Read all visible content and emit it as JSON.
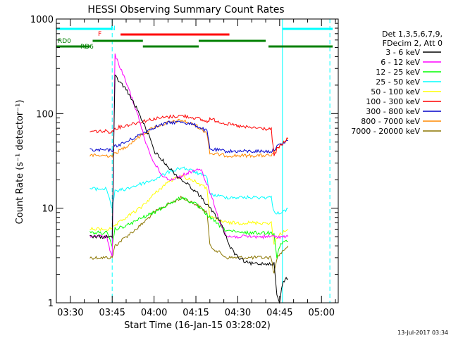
{
  "chart_data": {
    "type": "line",
    "title": "HESSI Observing Summary Count Rates",
    "xlabel": "Start Time (16-Jan-15 03:28:02)",
    "ylabel": "Count Rate (s⁻¹ detector⁻¹)",
    "y_scale": "log",
    "ylim": [
      1,
      1000
    ],
    "xlim": [
      "03:25",
      "05:06"
    ],
    "x_ticks": [
      "03:30",
      "03:45",
      "04:00",
      "04:15",
      "04:30",
      "04:45",
      "05:00"
    ],
    "y_ticks": [
      1,
      10,
      100,
      1000
    ],
    "legend_header": [
      "Det 1,3,5,6,7,9,",
      "FDecim 2, Att 0"
    ],
    "legend_position": "right",
    "series": [
      {
        "name": "3 - 6 keV",
        "color": "#000000",
        "x": [
          "03:37",
          "03:43",
          "03:45",
          "03:46",
          "03:50",
          "03:54",
          "03:58",
          "04:00",
          "04:04",
          "04:08",
          "04:12",
          "04:16",
          "04:20",
          "04:24",
          "04:27",
          "04:30",
          "04:34",
          "04:38",
          "04:41",
          "04:43",
          "04:44",
          "04:45",
          "04:46",
          "04:47",
          "04:48"
        ],
        "y": [
          5,
          5,
          5,
          250,
          180,
          110,
          60,
          40,
          30,
          22,
          18,
          14,
          10,
          7,
          4,
          3,
          2.6,
          2.6,
          2.6,
          2.6,
          1.2,
          1,
          1.6,
          1.8,
          1.8
        ]
      },
      {
        "name": "6 - 12 keV",
        "color": "#ff00ff",
        "x": [
          "03:37",
          "03:43",
          "03:45",
          "03:46",
          "03:48",
          "03:51",
          "03:54",
          "03:57",
          "04:00",
          "04:03",
          "04:06",
          "04:10",
          "04:14",
          "04:17",
          "04:20",
          "04:23",
          "04:26",
          "04:30",
          "04:34",
          "04:38",
          "04:41",
          "04:43",
          "04:44",
          "04:48"
        ],
        "y": [
          5,
          5,
          3,
          420,
          300,
          180,
          100,
          50,
          30,
          22,
          20,
          22,
          25,
          25,
          15,
          8,
          5,
          5,
          5,
          5,
          5,
          5,
          5,
          5
        ]
      },
      {
        "name": "12 - 25 keV",
        "color": "#00ff00",
        "x": [
          "03:37",
          "03:43",
          "03:45",
          "03:46",
          "03:50",
          "03:56",
          "04:00",
          "04:05",
          "04:10",
          "04:15",
          "04:20",
          "04:25",
          "04:30",
          "04:36",
          "04:42",
          "04:43",
          "04:44",
          "04:45",
          "04:47",
          "04:48"
        ],
        "y": [
          5.5,
          5.5,
          4,
          6,
          6.5,
          8,
          9,
          11,
          13,
          11,
          8,
          6,
          5.5,
          5.5,
          5.5,
          5.5,
          3,
          4,
          4.5,
          4.5
        ]
      },
      {
        "name": "25 - 50 keV",
        "color": "#00ffff",
        "x": [
          "03:37",
          "03:43",
          "03:45",
          "03:46",
          "03:50",
          "03:55",
          "04:00",
          "04:05",
          "04:10",
          "04:15",
          "04:19",
          "04:20",
          "04:26",
          "04:32",
          "04:38",
          "04:42",
          "04:43",
          "04:44",
          "04:46",
          "04:48"
        ],
        "y": [
          16,
          16,
          10,
          15,
          16,
          18,
          20,
          24,
          27,
          24,
          21,
          14,
          13,
          13,
          13,
          13,
          9,
          9,
          9,
          10
        ]
      },
      {
        "name": "50 - 100 keV",
        "color": "#ffff00",
        "x": [
          "03:37",
          "03:43",
          "03:45",
          "03:46",
          "03:50",
          "03:55",
          "04:00",
          "04:05",
          "04:10",
          "04:15",
          "04:19",
          "04:20",
          "04:26",
          "04:32",
          "04:38",
          "04:42",
          "04:43",
          "04:44",
          "04:46",
          "04:48"
        ],
        "y": [
          6,
          6,
          6,
          6.5,
          8,
          10,
          14,
          19,
          22,
          19,
          16,
          8,
          7,
          7,
          7,
          7,
          4,
          5,
          5.5,
          6
        ]
      },
      {
        "name": "100 - 300 keV",
        "color": "#ff0000",
        "x": [
          "03:37",
          "03:43",
          "03:45",
          "03:46",
          "03:50",
          "03:55",
          "04:00",
          "04:05",
          "04:10",
          "04:15",
          "04:19",
          "04:20",
          "04:26",
          "04:32",
          "04:38",
          "04:42",
          "04:43",
          "04:44",
          "04:46",
          "04:48"
        ],
        "y": [
          65,
          65,
          64,
          70,
          75,
          82,
          88,
          92,
          95,
          90,
          82,
          88,
          78,
          72,
          70,
          68,
          35,
          42,
          48,
          55
        ]
      },
      {
        "name": "300 - 800 keV",
        "color": "#0000cc",
        "x": [
          "03:37",
          "03:43",
          "03:45",
          "03:46",
          "03:50",
          "03:55",
          "04:00",
          "04:05",
          "04:10",
          "04:15",
          "04:19",
          "04:20",
          "04:26",
          "04:32",
          "04:38",
          "04:42",
          "04:43",
          "04:44",
          "04:46",
          "04:48"
        ],
        "y": [
          41,
          41,
          41,
          45,
          50,
          60,
          72,
          80,
          82,
          75,
          65,
          42,
          40,
          40,
          40,
          40,
          42,
          45,
          48,
          52
        ]
      },
      {
        "name": "800 - 7000 keV",
        "color": "#ff8800",
        "x": [
          "03:37",
          "03:43",
          "03:45",
          "03:46",
          "03:50",
          "03:55",
          "04:00",
          "04:05",
          "04:10",
          "04:15",
          "04:19",
          "04:20",
          "04:26",
          "04:32",
          "04:38",
          "04:42",
          "04:43",
          "04:44",
          "04:46",
          "04:48"
        ],
        "y": [
          36,
          36,
          36,
          38,
          45,
          58,
          72,
          80,
          85,
          75,
          62,
          38,
          36,
          36,
          36,
          36,
          38,
          42,
          48,
          55
        ]
      },
      {
        "name": "7000 - 20000 keV",
        "color": "#8b7500",
        "x": [
          "03:37",
          "03:43",
          "03:45",
          "03:46",
          "03:50",
          "03:55",
          "04:00",
          "04:05",
          "04:10",
          "04:15",
          "04:19",
          "04:20",
          "04:26",
          "04:32",
          "04:38",
          "04:42",
          "04:43",
          "04:44",
          "04:46",
          "04:48"
        ],
        "y": [
          3,
          3,
          3,
          4,
          5,
          6.5,
          9,
          11,
          13,
          11,
          9,
          4,
          3,
          3,
          3,
          3,
          2,
          3,
          3.5,
          4
        ]
      }
    ],
    "annotations": [
      {
        "label": "N",
        "color": "#00ffff",
        "segments": [
          [
            "03:25",
            "03:45"
          ],
          [
            "04:46",
            "05:04"
          ]
        ]
      },
      {
        "label": "F",
        "color": "#ff0000",
        "segments": [
          [
            "03:48",
            "04:27"
          ]
        ]
      },
      {
        "label": "RD0",
        "color": "#008000",
        "segments": [
          [
            "03:38",
            "03:56"
          ],
          [
            "04:16",
            "04:40"
          ]
        ]
      },
      {
        "label": "RD6",
        "color": "#008000",
        "segments": [
          [
            "03:25",
            "03:37"
          ],
          [
            "03:56",
            "04:16"
          ],
          [
            "04:41",
            "05:04"
          ]
        ]
      }
    ],
    "vertical_markers": [
      {
        "x": "03:45",
        "color": "#00ffff",
        "style": "dashed"
      },
      {
        "x": "04:46",
        "color": "#00ffff",
        "style": "solid"
      },
      {
        "x": "05:03",
        "color": "#00ffff",
        "style": "dashed"
      }
    ],
    "timestamp": "13-Jul-2017 03:34"
  }
}
